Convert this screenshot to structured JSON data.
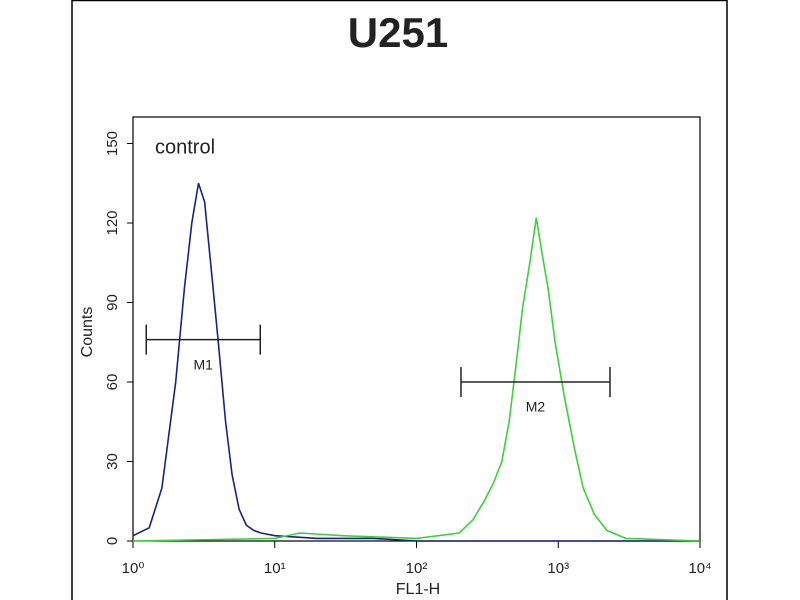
{
  "chart_data": {
    "type": "line",
    "title": "U251",
    "xlabel": "FL1-H",
    "ylabel": "Counts",
    "annotation": "control",
    "xscale": "log",
    "xlim": [
      1,
      10000
    ],
    "ylim": [
      0,
      160
    ],
    "xticks": [
      {
        "value": 1,
        "label": "10⁰"
      },
      {
        "value": 10,
        "label": "10¹"
      },
      {
        "value": 100,
        "label": "10²"
      },
      {
        "value": 1000,
        "label": "10³"
      },
      {
        "value": 10000,
        "label": "10⁴"
      }
    ],
    "yticks": [
      0,
      30,
      60,
      90,
      120,
      150
    ],
    "series": [
      {
        "color": "#1a237e",
        "x": [
          1,
          1.3,
          1.6,
          2,
          2.3,
          2.6,
          2.9,
          3.2,
          3.6,
          4,
          4.5,
          5,
          5.6,
          6.3,
          7.1,
          8,
          10,
          20,
          50,
          100,
          1000,
          10000
        ],
        "values": [
          2,
          5,
          20,
          60,
          95,
          120,
          135,
          128,
          100,
          75,
          45,
          25,
          12,
          6,
          4,
          3,
          2,
          1,
          1,
          0,
          0,
          0
        ]
      },
      {
        "color": "#3ecf3e",
        "x": [
          1,
          10,
          15,
          30,
          100,
          200,
          250,
          300,
          350,
          400,
          450,
          500,
          560,
          630,
          700,
          760,
          850,
          950,
          1100,
          1300,
          1500,
          1800,
          2200,
          3000,
          10000
        ],
        "values": [
          0,
          1,
          3,
          2,
          1,
          3,
          8,
          15,
          22,
          30,
          45,
          65,
          88,
          105,
          122,
          110,
          95,
          75,
          55,
          35,
          20,
          10,
          4,
          1,
          0
        ]
      }
    ],
    "markers": [
      {
        "label": "M1",
        "x": [
          1.24,
          7.9
        ],
        "y": 76
      },
      {
        "label": "M2",
        "x": [
          206,
          2317
        ],
        "y": 60
      }
    ]
  }
}
